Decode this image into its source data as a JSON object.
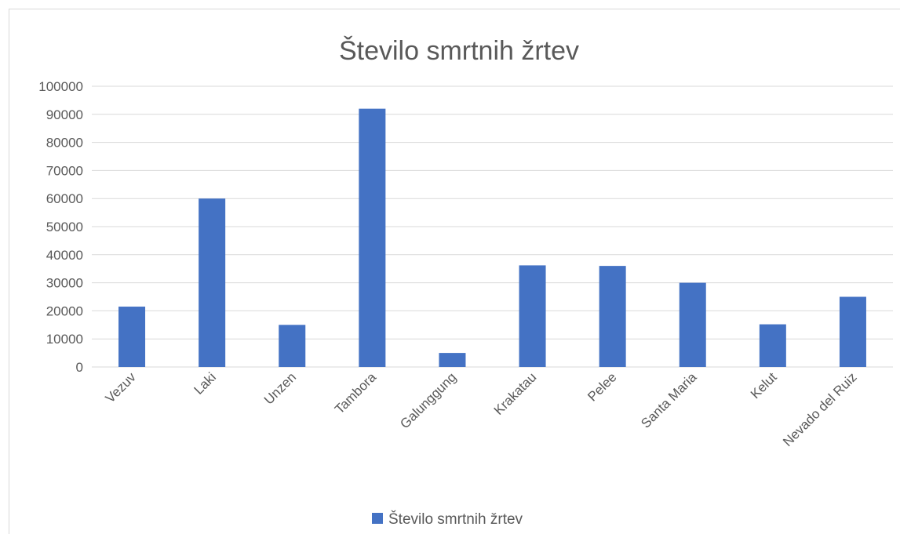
{
  "chart_data": {
    "type": "bar",
    "title": "Število smrtnih žrtev",
    "categories": [
      "Vezuv",
      "Laki",
      "Unzen",
      "Tambora",
      "Galunggung",
      "Krakatau",
      "Pelee",
      "Santa Maria",
      "Kelut",
      "Nevado del Ruiz"
    ],
    "series": [
      {
        "name": "Število smrtnih žrtev",
        "values": [
          21500,
          60000,
          15000,
          92000,
          5000,
          36200,
          36000,
          30000,
          15200,
          25000
        ]
      }
    ],
    "ylim": [
      0,
      100000
    ],
    "yticks": [
      "0",
      "10000",
      "20000",
      "30000",
      "40000",
      "50000",
      "60000",
      "70000",
      "80000",
      "90000",
      "100000"
    ],
    "grid": true,
    "legend_position": "bottom",
    "bar_color": "#4472c4",
    "grid_color": "#d9d9d9",
    "text_color": "#595959"
  }
}
